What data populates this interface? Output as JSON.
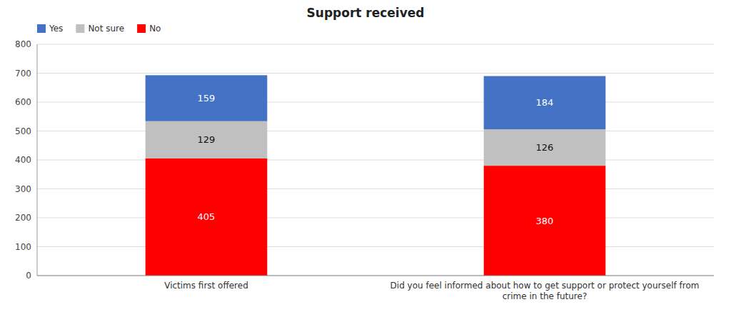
{
  "chart_data": {
    "type": "bar",
    "stacked": true,
    "title": "Support received",
    "categories": [
      "Victims first offered",
      "Did you feel informed about how to get support or protect yourself from crime in the future?"
    ],
    "series": [
      {
        "name": "No",
        "color": "#ff0000",
        "values": [
          405,
          380
        ]
      },
      {
        "name": "Not sure",
        "color": "#c0c0c0",
        "values": [
          129,
          126
        ]
      },
      {
        "name": "Yes",
        "color": "#4472c4",
        "values": [
          159,
          184
        ]
      }
    ],
    "ylim": [
      0,
      800
    ],
    "yticks": [
      0,
      100,
      200,
      300,
      400,
      500,
      600,
      700,
      800
    ],
    "grid": true,
    "data_labels": true,
    "legend": "upper left"
  }
}
